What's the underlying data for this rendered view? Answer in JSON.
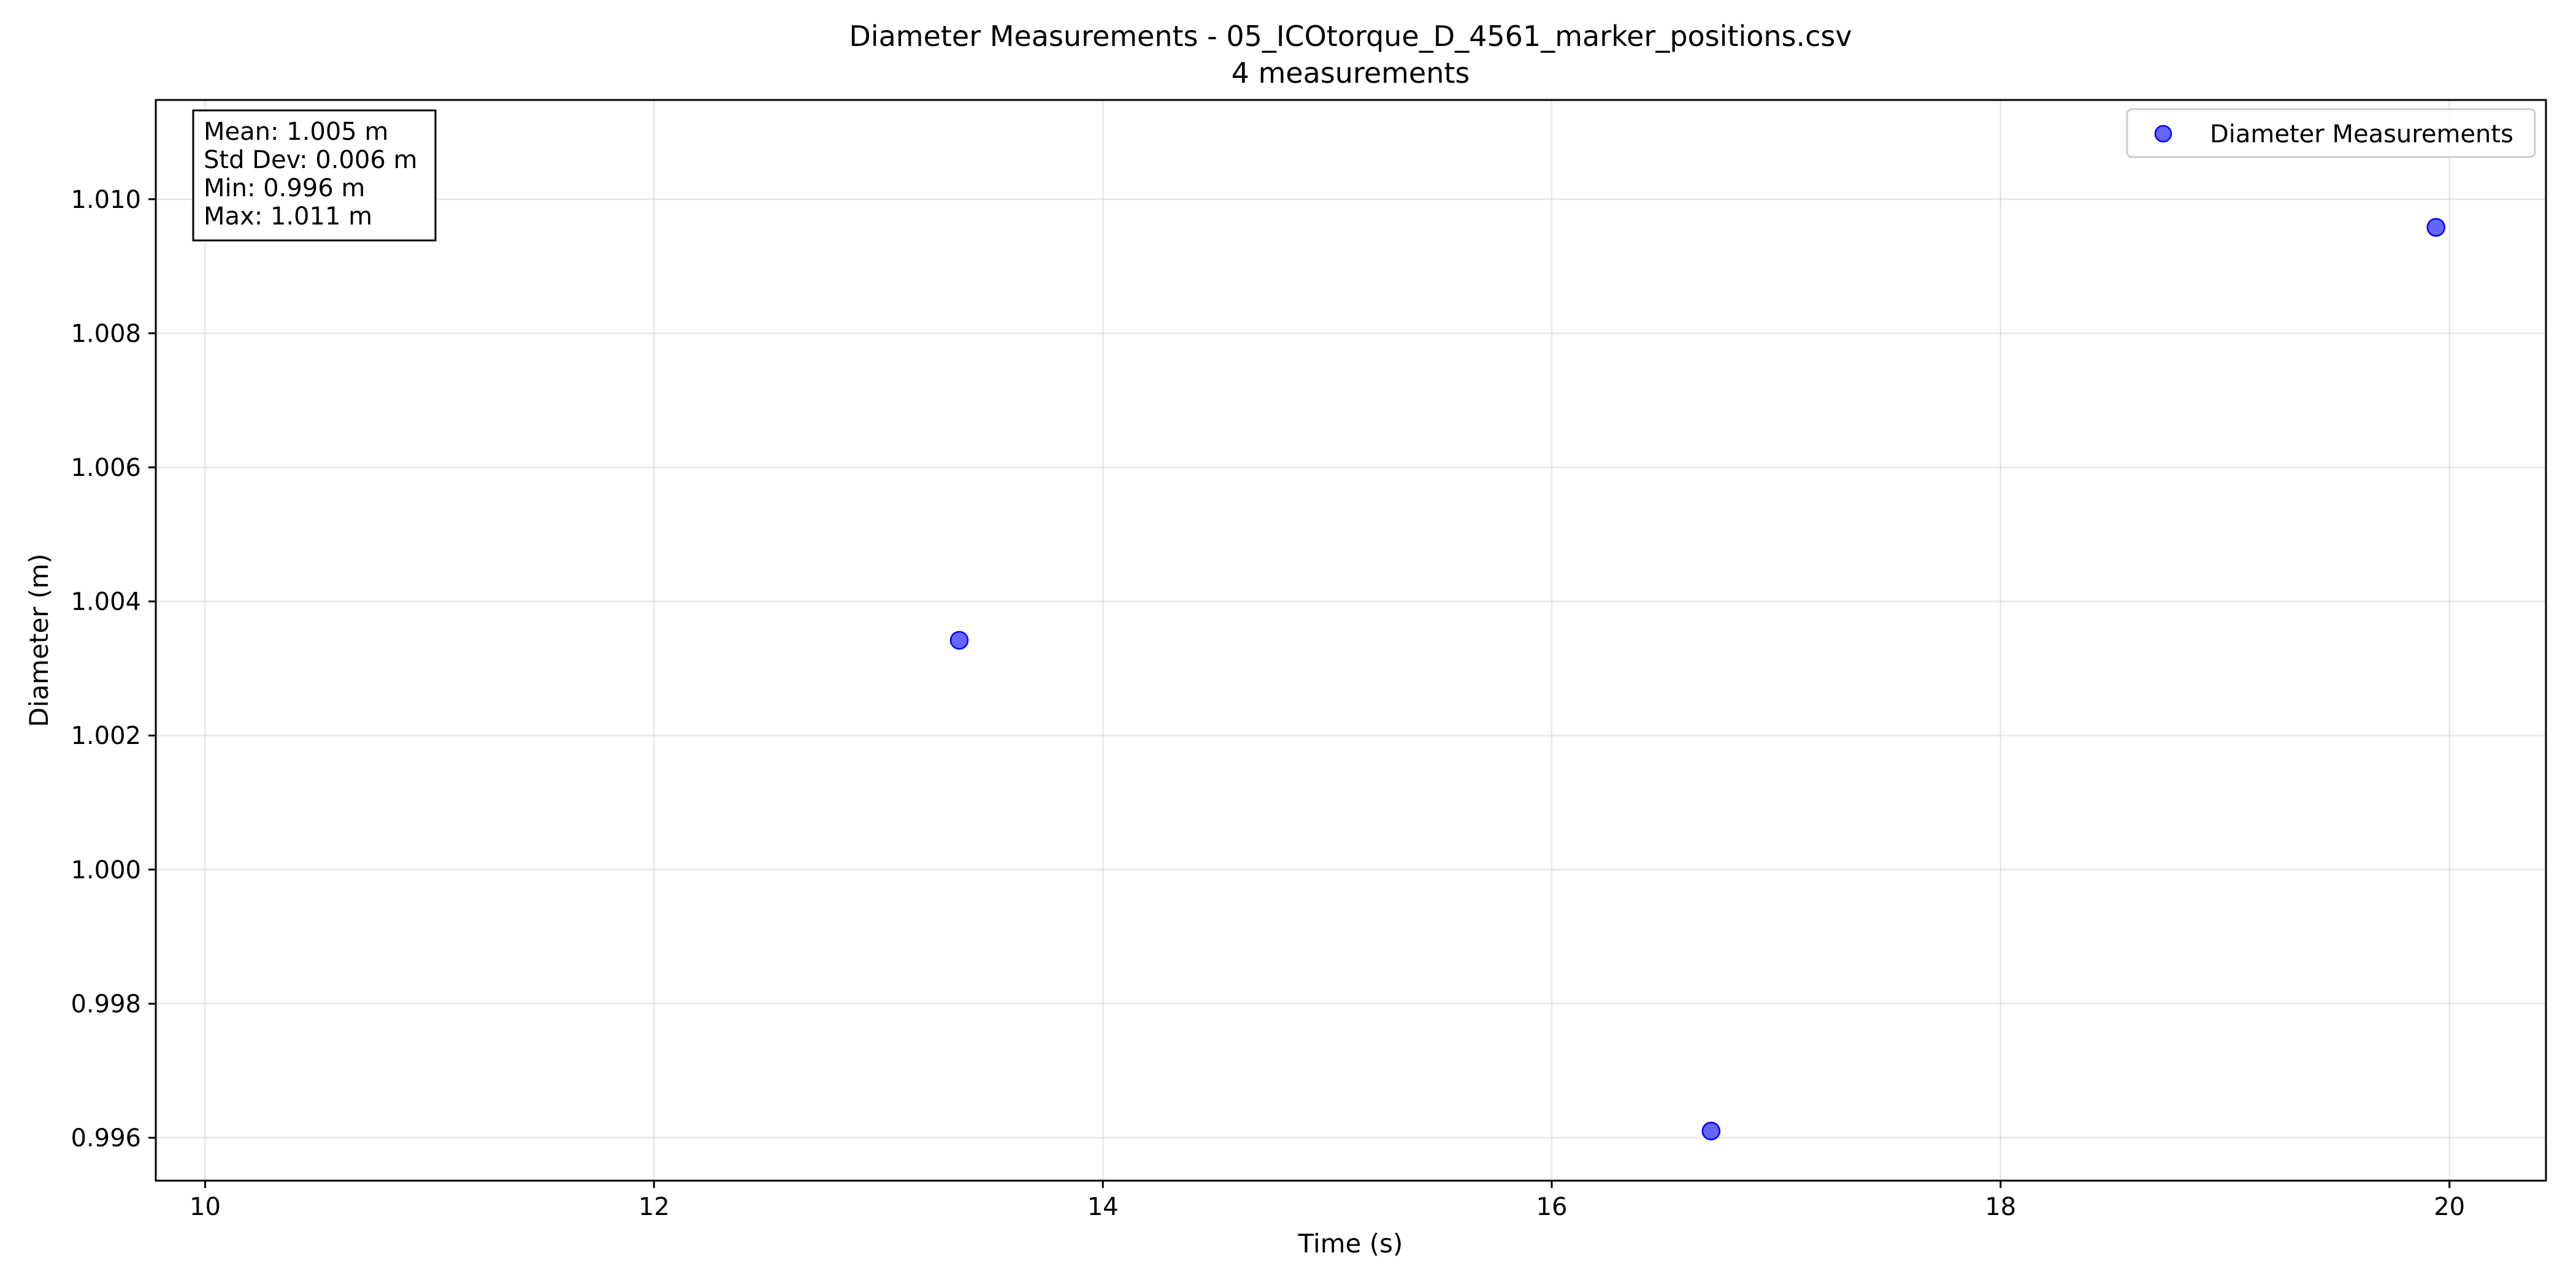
{
  "chart_data": {
    "type": "scatter",
    "title": "Diameter Measurements - 05_ICOtorque_D_4561_marker_positions.csv",
    "subtitle": "4 measurements",
    "xlabel": "Time (s)",
    "ylabel": "Diameter (m)",
    "xlim": [
      9.78,
      20.43
    ],
    "ylim": [
      0.99536,
      1.01148
    ],
    "x_ticks": [
      10,
      12,
      14,
      16,
      18,
      20
    ],
    "x_tick_labels": [
      "10",
      "12",
      "14",
      "16",
      "18",
      "20"
    ],
    "y_ticks": [
      0.996,
      0.998,
      1.0,
      1.002,
      1.004,
      1.006,
      1.008,
      1.01
    ],
    "y_tick_labels": [
      "0.996",
      "0.998",
      "1.000",
      "1.002",
      "1.004",
      "1.006",
      "1.008",
      "1.010"
    ],
    "grid": true,
    "legend_position": "top-right",
    "series": [
      {
        "name": "Diameter Measurements",
        "color": "#0000ff",
        "x": [
          10.25,
          13.36,
          16.71,
          19.94
        ],
        "y": [
          1.0107,
          1.00342,
          0.9961,
          1.00958
        ]
      }
    ],
    "stats_box": {
      "position": "top-left",
      "lines": [
        "Mean: 1.005 m",
        "Std Dev: 0.006 m",
        "Min: 0.996 m",
        "Max: 1.011 m"
      ]
    }
  }
}
